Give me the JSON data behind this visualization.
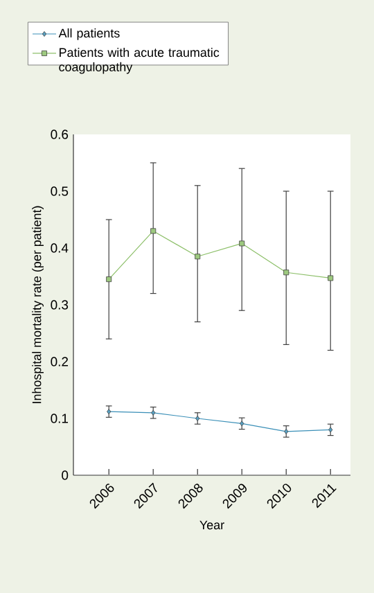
{
  "chart_data": {
    "type": "line",
    "xlabel": "Year",
    "ylabel": "Inhospital mortality rate (per patient)",
    "categories": [
      "2006",
      "2007",
      "2008",
      "2009",
      "2010",
      "2011"
    ],
    "ylim": [
      0,
      0.6
    ],
    "yticks": [
      0,
      0.1,
      0.2,
      0.3,
      0.4,
      0.5,
      0.6
    ],
    "grid": false,
    "legend": "top",
    "series": [
      {
        "name": "All patients",
        "color": "#3a8fb7",
        "marker": "diamond",
        "values": [
          0.112,
          0.11,
          0.1,
          0.091,
          0.077,
          0.08
        ],
        "errors": [
          0.01,
          0.01,
          0.01,
          0.01,
          0.01,
          0.01
        ]
      },
      {
        "name": "Patients with acute traumatic coagulopathy",
        "color": "#8cbf68",
        "marker": "square",
        "values": [
          0.345,
          0.43,
          0.385,
          0.408,
          0.357,
          0.347
        ],
        "errors": [
          [
            0.24,
            0.45
          ],
          [
            0.32,
            0.55
          ],
          [
            0.27,
            0.51
          ],
          [
            0.29,
            0.54
          ],
          [
            0.23,
            0.5
          ],
          [
            0.22,
            0.5
          ]
        ]
      }
    ]
  }
}
